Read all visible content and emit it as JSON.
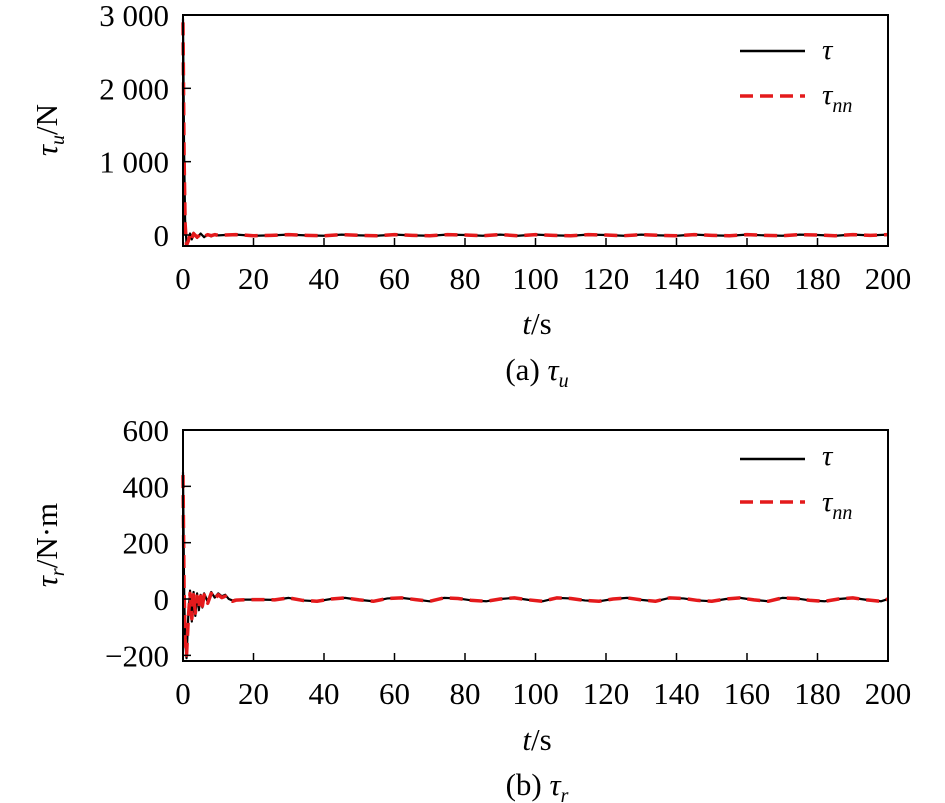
{
  "chart_data": [
    {
      "type": "line",
      "caption": "(a) τu",
      "caption_prefix": "(a) ",
      "caption_symbol": "τ",
      "caption_sub": "u",
      "ylabel": "τu/N",
      "ylabel_symbol": "τ",
      "ylabel_sub": "u",
      "ylabel_unit": "/N",
      "xlabel": "t/s",
      "xlabel_var": "t",
      "xlabel_unit": "/s",
      "xlim": [
        0,
        200
      ],
      "ylim": [
        -150,
        3000
      ],
      "xticks": [
        0,
        20,
        40,
        60,
        80,
        100,
        120,
        140,
        160,
        180,
        200
      ],
      "xtick_labels": [
        "0",
        "20",
        "40",
        "60",
        "80",
        "100",
        "120",
        "140",
        "160",
        "180",
        "200"
      ],
      "yticks": [
        0,
        1000,
        2000,
        3000
      ],
      "ytick_labels": [
        "0",
        "1 000",
        "2 000",
        "3 000"
      ],
      "grid": false,
      "legend_position": "top-right",
      "series": [
        {
          "name": "τ",
          "name_symbol": "τ",
          "name_sub": "",
          "color": "#000000",
          "dash": "solid",
          "x": [
            0,
            0.3,
            0.6,
            1,
            1.5,
            2,
            2.5,
            3,
            4,
            5,
            6,
            7,
            8,
            9,
            10,
            12,
            15,
            20,
            25,
            30,
            35,
            40,
            45,
            50,
            55,
            60,
            65,
            70,
            75,
            80,
            85,
            90,
            95,
            100,
            105,
            110,
            115,
            120,
            125,
            130,
            135,
            140,
            145,
            150,
            155,
            160,
            165,
            170,
            175,
            180,
            185,
            190,
            195,
            200
          ],
          "y": [
            2950,
            1200,
            200,
            -120,
            -90,
            20,
            -60,
            30,
            -40,
            20,
            -30,
            10,
            -20,
            10,
            -5,
            0,
            5,
            -10,
            -5,
            5,
            -5,
            -10,
            5,
            -5,
            -10,
            5,
            -5,
            -10,
            5,
            0,
            -10,
            5,
            -10,
            5,
            -5,
            -10,
            5,
            0,
            -10,
            5,
            -5,
            -10,
            5,
            -5,
            -10,
            5,
            -5,
            -10,
            5,
            0,
            -10,
            5,
            -5,
            5
          ]
        },
        {
          "name": "τnn",
          "name_symbol": "τ",
          "name_sub": "nn",
          "color": "#e41a1c",
          "dash": "dashed",
          "x": [
            0,
            0.3,
            0.6,
            1,
            1.5,
            2,
            2.5,
            3,
            4,
            5,
            6,
            7,
            8,
            9,
            10,
            12,
            15,
            20,
            25,
            30,
            35,
            40,
            45,
            50,
            55,
            60,
            65,
            70,
            75,
            80,
            85,
            90,
            95,
            100,
            105,
            110,
            115,
            120,
            125,
            130,
            135,
            140,
            145,
            150,
            155,
            160,
            165,
            170,
            175,
            180,
            185,
            190,
            195,
            200
          ],
          "y": [
            2900,
            1100,
            150,
            -140,
            -80,
            10,
            -50,
            20,
            -30,
            10,
            -20,
            5,
            -10,
            5,
            -5,
            0,
            5,
            -10,
            -5,
            5,
            -5,
            -10,
            5,
            -5,
            -10,
            5,
            -5,
            -10,
            5,
            0,
            -10,
            5,
            -10,
            5,
            -5,
            -10,
            5,
            0,
            -10,
            5,
            -5,
            -10,
            5,
            -5,
            -10,
            5,
            -5,
            -10,
            5,
            0,
            -10,
            5,
            -5,
            5
          ]
        }
      ]
    },
    {
      "type": "line",
      "caption": "(b) τr",
      "caption_prefix": "(b) ",
      "caption_symbol": "τ",
      "caption_sub": "r",
      "ylabel": "τr/N·m",
      "ylabel_symbol": "τ",
      "ylabel_sub": "r",
      "ylabel_unit": "/N·m",
      "xlabel": "t/s",
      "xlabel_var": "t",
      "xlabel_unit": "/s",
      "xlim": [
        0,
        200
      ],
      "ylim": [
        -220,
        600
      ],
      "xticks": [
        0,
        20,
        40,
        60,
        80,
        100,
        120,
        140,
        160,
        180,
        200
      ],
      "xtick_labels": [
        "0",
        "20",
        "40",
        "60",
        "80",
        "100",
        "120",
        "140",
        "160",
        "180",
        "200"
      ],
      "yticks": [
        -200,
        0,
        200,
        400,
        600
      ],
      "ytick_labels": [
        "−200",
        "0",
        "200",
        "400",
        "600"
      ],
      "grid": false,
      "legend_position": "top-right",
      "series": [
        {
          "name": "τ",
          "name_symbol": "τ",
          "name_sub": "",
          "color": "#000000",
          "dash": "solid",
          "x": [
            0,
            0.3,
            0.6,
            1,
            1.5,
            2,
            2.5,
            3,
            3.5,
            4,
            4.5,
            5,
            5.5,
            6,
            7,
            8,
            9,
            10,
            11,
            12,
            13,
            14,
            15,
            18,
            22,
            26,
            30,
            34,
            38,
            42,
            46,
            50,
            54,
            58,
            62,
            66,
            70,
            74,
            78,
            82,
            86,
            90,
            94,
            98,
            102,
            106,
            110,
            114,
            118,
            122,
            126,
            130,
            134,
            138,
            142,
            146,
            150,
            154,
            158,
            162,
            166,
            170,
            174,
            178,
            182,
            186,
            190,
            194,
            198,
            200
          ],
          "y": [
            450,
            50,
            -150,
            -210,
            -60,
            30,
            -80,
            25,
            -60,
            20,
            -40,
            15,
            -30,
            20,
            -10,
            25,
            5,
            20,
            10,
            15,
            0,
            -5,
            -2,
            -2,
            -2,
            -3,
            4,
            -5,
            -8,
            0,
            4,
            -3,
            -8,
            2,
            4,
            -2,
            -8,
            4,
            2,
            -5,
            -8,
            0,
            4,
            -3,
            -8,
            4,
            2,
            -5,
            -8,
            0,
            4,
            -3,
            -8,
            4,
            2,
            -5,
            -8,
            0,
            4,
            -3,
            -8,
            4,
            2,
            -5,
            -8,
            0,
            4,
            -3,
            -8,
            0
          ]
        },
        {
          "name": "τnn",
          "name_symbol": "τ",
          "name_sub": "nn",
          "color": "#e41a1c",
          "dash": "dashed",
          "x": [
            0,
            0.3,
            0.6,
            1,
            1.5,
            2,
            2.5,
            3,
            3.5,
            4,
            4.5,
            5,
            5.5,
            6,
            7,
            8,
            9,
            10,
            11,
            12,
            13,
            14,
            15,
            18,
            22,
            26,
            30,
            34,
            38,
            42,
            46,
            50,
            54,
            58,
            62,
            66,
            70,
            74,
            78,
            82,
            86,
            90,
            94,
            98,
            102,
            106,
            110,
            114,
            118,
            122,
            126,
            130,
            134,
            138,
            142,
            146,
            150,
            154,
            158,
            162,
            166,
            170,
            174,
            178,
            182,
            186,
            190,
            194,
            198,
            200
          ],
          "y": [
            440,
            40,
            -140,
            -200,
            -70,
            20,
            -70,
            15,
            -50,
            10,
            -30,
            10,
            -25,
            15,
            -15,
            20,
            0,
            15,
            5,
            10,
            -5,
            -8,
            -4,
            -2,
            -2,
            -3,
            4,
            -5,
            -8,
            0,
            4,
            -3,
            -8,
            2,
            4,
            -2,
            -8,
            4,
            2,
            -5,
            -8,
            0,
            4,
            -3,
            -8,
            4,
            2,
            -5,
            -8,
            0,
            4,
            -3,
            -8,
            4,
            2,
            -5,
            -8,
            0,
            4,
            -3,
            -8,
            4,
            2,
            -5,
            -8,
            0,
            4,
            -3,
            -8,
            0
          ]
        }
      ]
    }
  ]
}
